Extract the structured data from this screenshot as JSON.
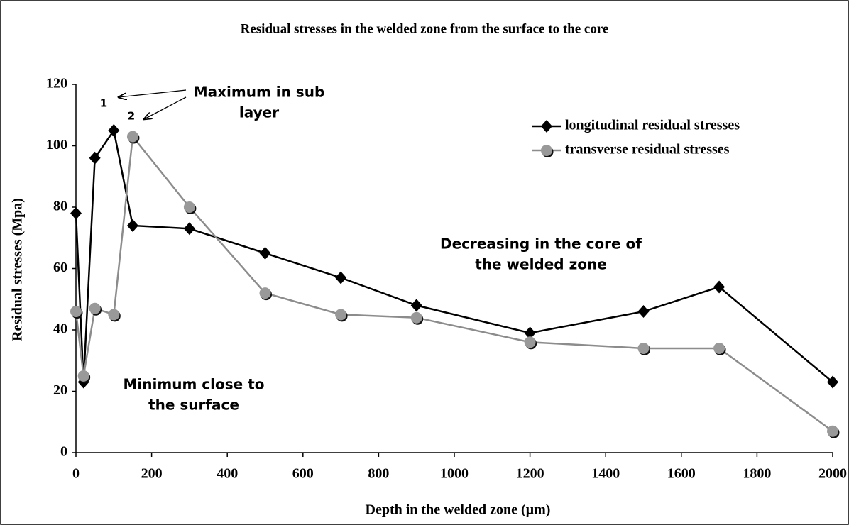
{
  "chart_data": {
    "type": "line",
    "title": "Residual stresses in the welded zone from the surface to the core",
    "x_label": "Depth in the welded zone (µm)",
    "y_label": "Residual stresses (Mpa)",
    "xlim": [
      0,
      2000
    ],
    "ylim": [
      0,
      120
    ],
    "xticks": [
      0,
      200,
      400,
      600,
      800,
      1000,
      1200,
      1400,
      1600,
      1800,
      2000
    ],
    "yticks": [
      0,
      20,
      40,
      60,
      80,
      100,
      120
    ],
    "grid": false,
    "legend": "upper right",
    "series": [
      {
        "name": "longitudinal residual stresses",
        "color": "#000000",
        "marker": "diamond",
        "x": [
          0,
          20,
          50,
          100,
          150,
          300,
          500,
          700,
          900,
          1200,
          1500,
          1700,
          2000
        ],
        "values": [
          78,
          23,
          96,
          105,
          74,
          73,
          65,
          57,
          48,
          39,
          46,
          54,
          23
        ]
      },
      {
        "name": "transverse residual stresses",
        "color": "#8c8c8c",
        "marker": "circle",
        "x": [
          0,
          20,
          50,
          100,
          150,
          300,
          500,
          700,
          900,
          1200,
          1500,
          1700,
          2000
        ],
        "values": [
          46,
          25,
          47,
          45,
          103,
          80,
          52,
          45,
          44,
          36,
          34,
          34,
          7
        ]
      }
    ],
    "annotations": [
      {
        "lines": [
          "Maximum in sub",
          "layer"
        ]
      },
      {
        "lines": [
          "1"
        ]
      },
      {
        "lines": [
          "2"
        ]
      },
      {
        "lines": [
          "Minimum close to",
          "the surface"
        ]
      },
      {
        "lines": [
          "Decreasing in the core of",
          "the welded zone"
        ]
      }
    ]
  }
}
